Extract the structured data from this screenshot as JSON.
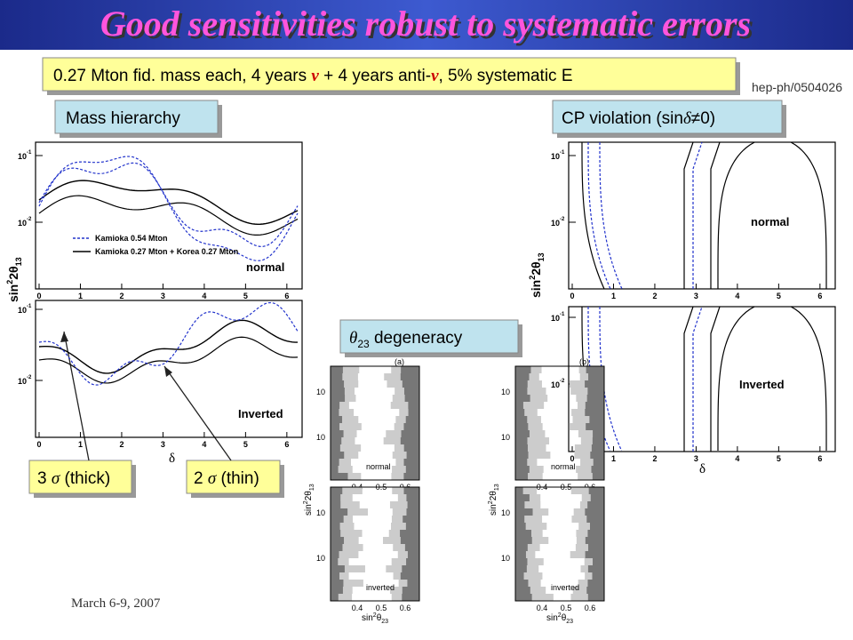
{
  "title": "Good sensitivities robust to systematic errors",
  "subtitle": [
    "0.27 Mton fid. mass each, 4 years ",
    "ν",
    " + 4 years anti-",
    "ν",
    ", 5% systematic E"
  ],
  "reference": "hep-ph/0504026",
  "labels": {
    "mass_hierarchy": "Mass hierarchy",
    "cp_violation": [
      "CP violation (sin",
      "δ",
      "≠0)"
    ],
    "theta23": [
      "θ",
      "23",
      " degeneracy"
    ],
    "three_sigma": [
      "3 ",
      "σ",
      " (thick)"
    ],
    "two_sigma": [
      "2 ",
      "σ",
      " (thin)"
    ]
  },
  "footer": "March 6-9, 2007",
  "plots": {
    "x_ticks": [
      "0",
      "1",
      "2",
      "3",
      "4",
      "5",
      "6"
    ],
    "y_base": "10",
    "y_exponents": [
      "-1",
      "-2"
    ],
    "x_label": "δ",
    "y_label": [
      "sin",
      "2",
      "2θ",
      "13"
    ],
    "legend": [
      "Kamioka 0.54 Mton",
      "Kamioka 0.27 Mton + Korea 0.27 Mton"
    ],
    "hierarchies": [
      "normal",
      "Inverted"
    ]
  },
  "degeneracy_plots": {
    "panels": [
      "(a)",
      "(b)"
    ],
    "x_ticks": [
      "0.4",
      "0.5",
      "0.6"
    ],
    "x_label": [
      "sin",
      "2",
      "θ",
      "23"
    ],
    "y_label": [
      "sin",
      "2",
      "2θ",
      "13"
    ],
    "hierarchies": [
      "normal",
      "inverted"
    ]
  }
}
